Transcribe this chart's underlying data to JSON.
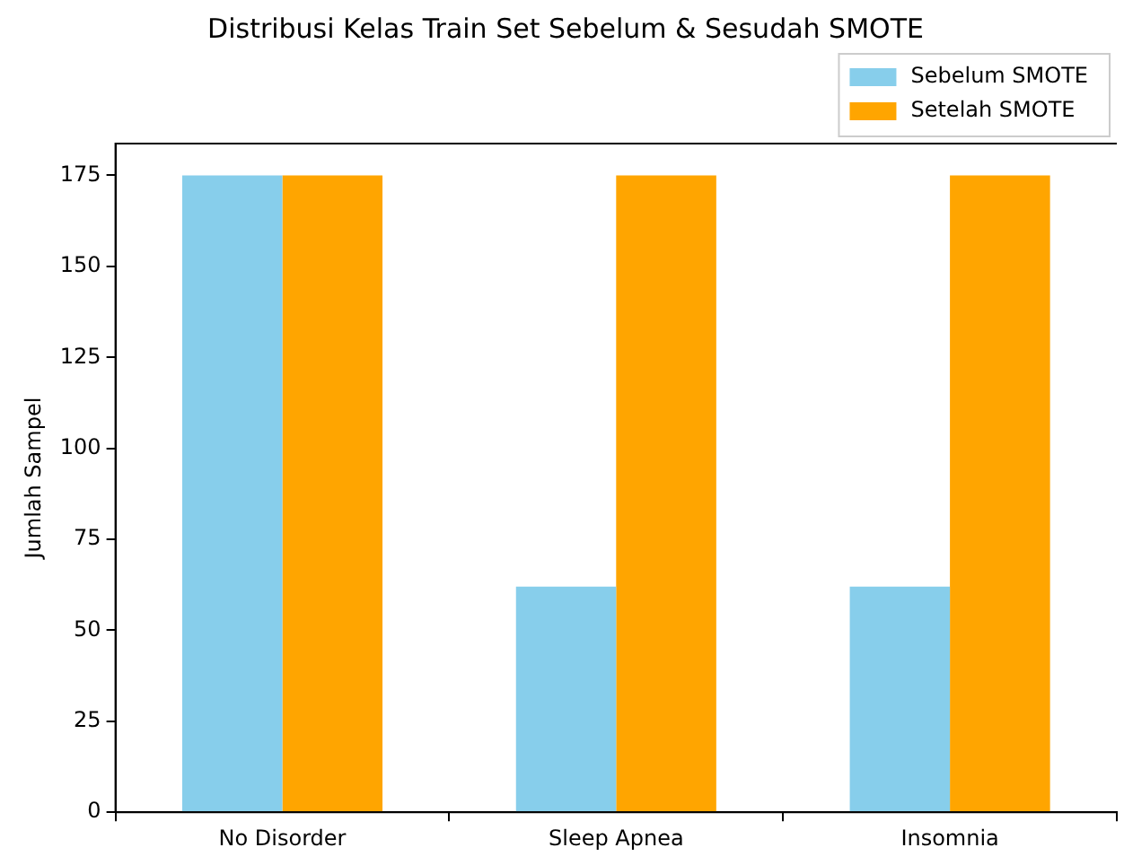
{
  "chart_data": {
    "type": "bar",
    "title": "Distribusi Kelas Train Set Sebelum & Sesudah SMOTE",
    "ylabel": "Jumlah Sampel",
    "categories": [
      "No Disorder",
      "Sleep Apnea",
      "Insomnia"
    ],
    "series": [
      {
        "name": "Sebelum SMOTE",
        "color": "#87ceeb",
        "values": [
          175,
          62,
          62
        ]
      },
      {
        "name": "Setelah SMOTE",
        "color": "#ffa500",
        "values": [
          175,
          175,
          175
        ]
      }
    ],
    "ylim": [
      0,
      183.75
    ],
    "yticks": [
      0,
      25,
      50,
      75,
      100,
      125,
      150,
      175
    ],
    "grid": false,
    "legend": "top right"
  }
}
